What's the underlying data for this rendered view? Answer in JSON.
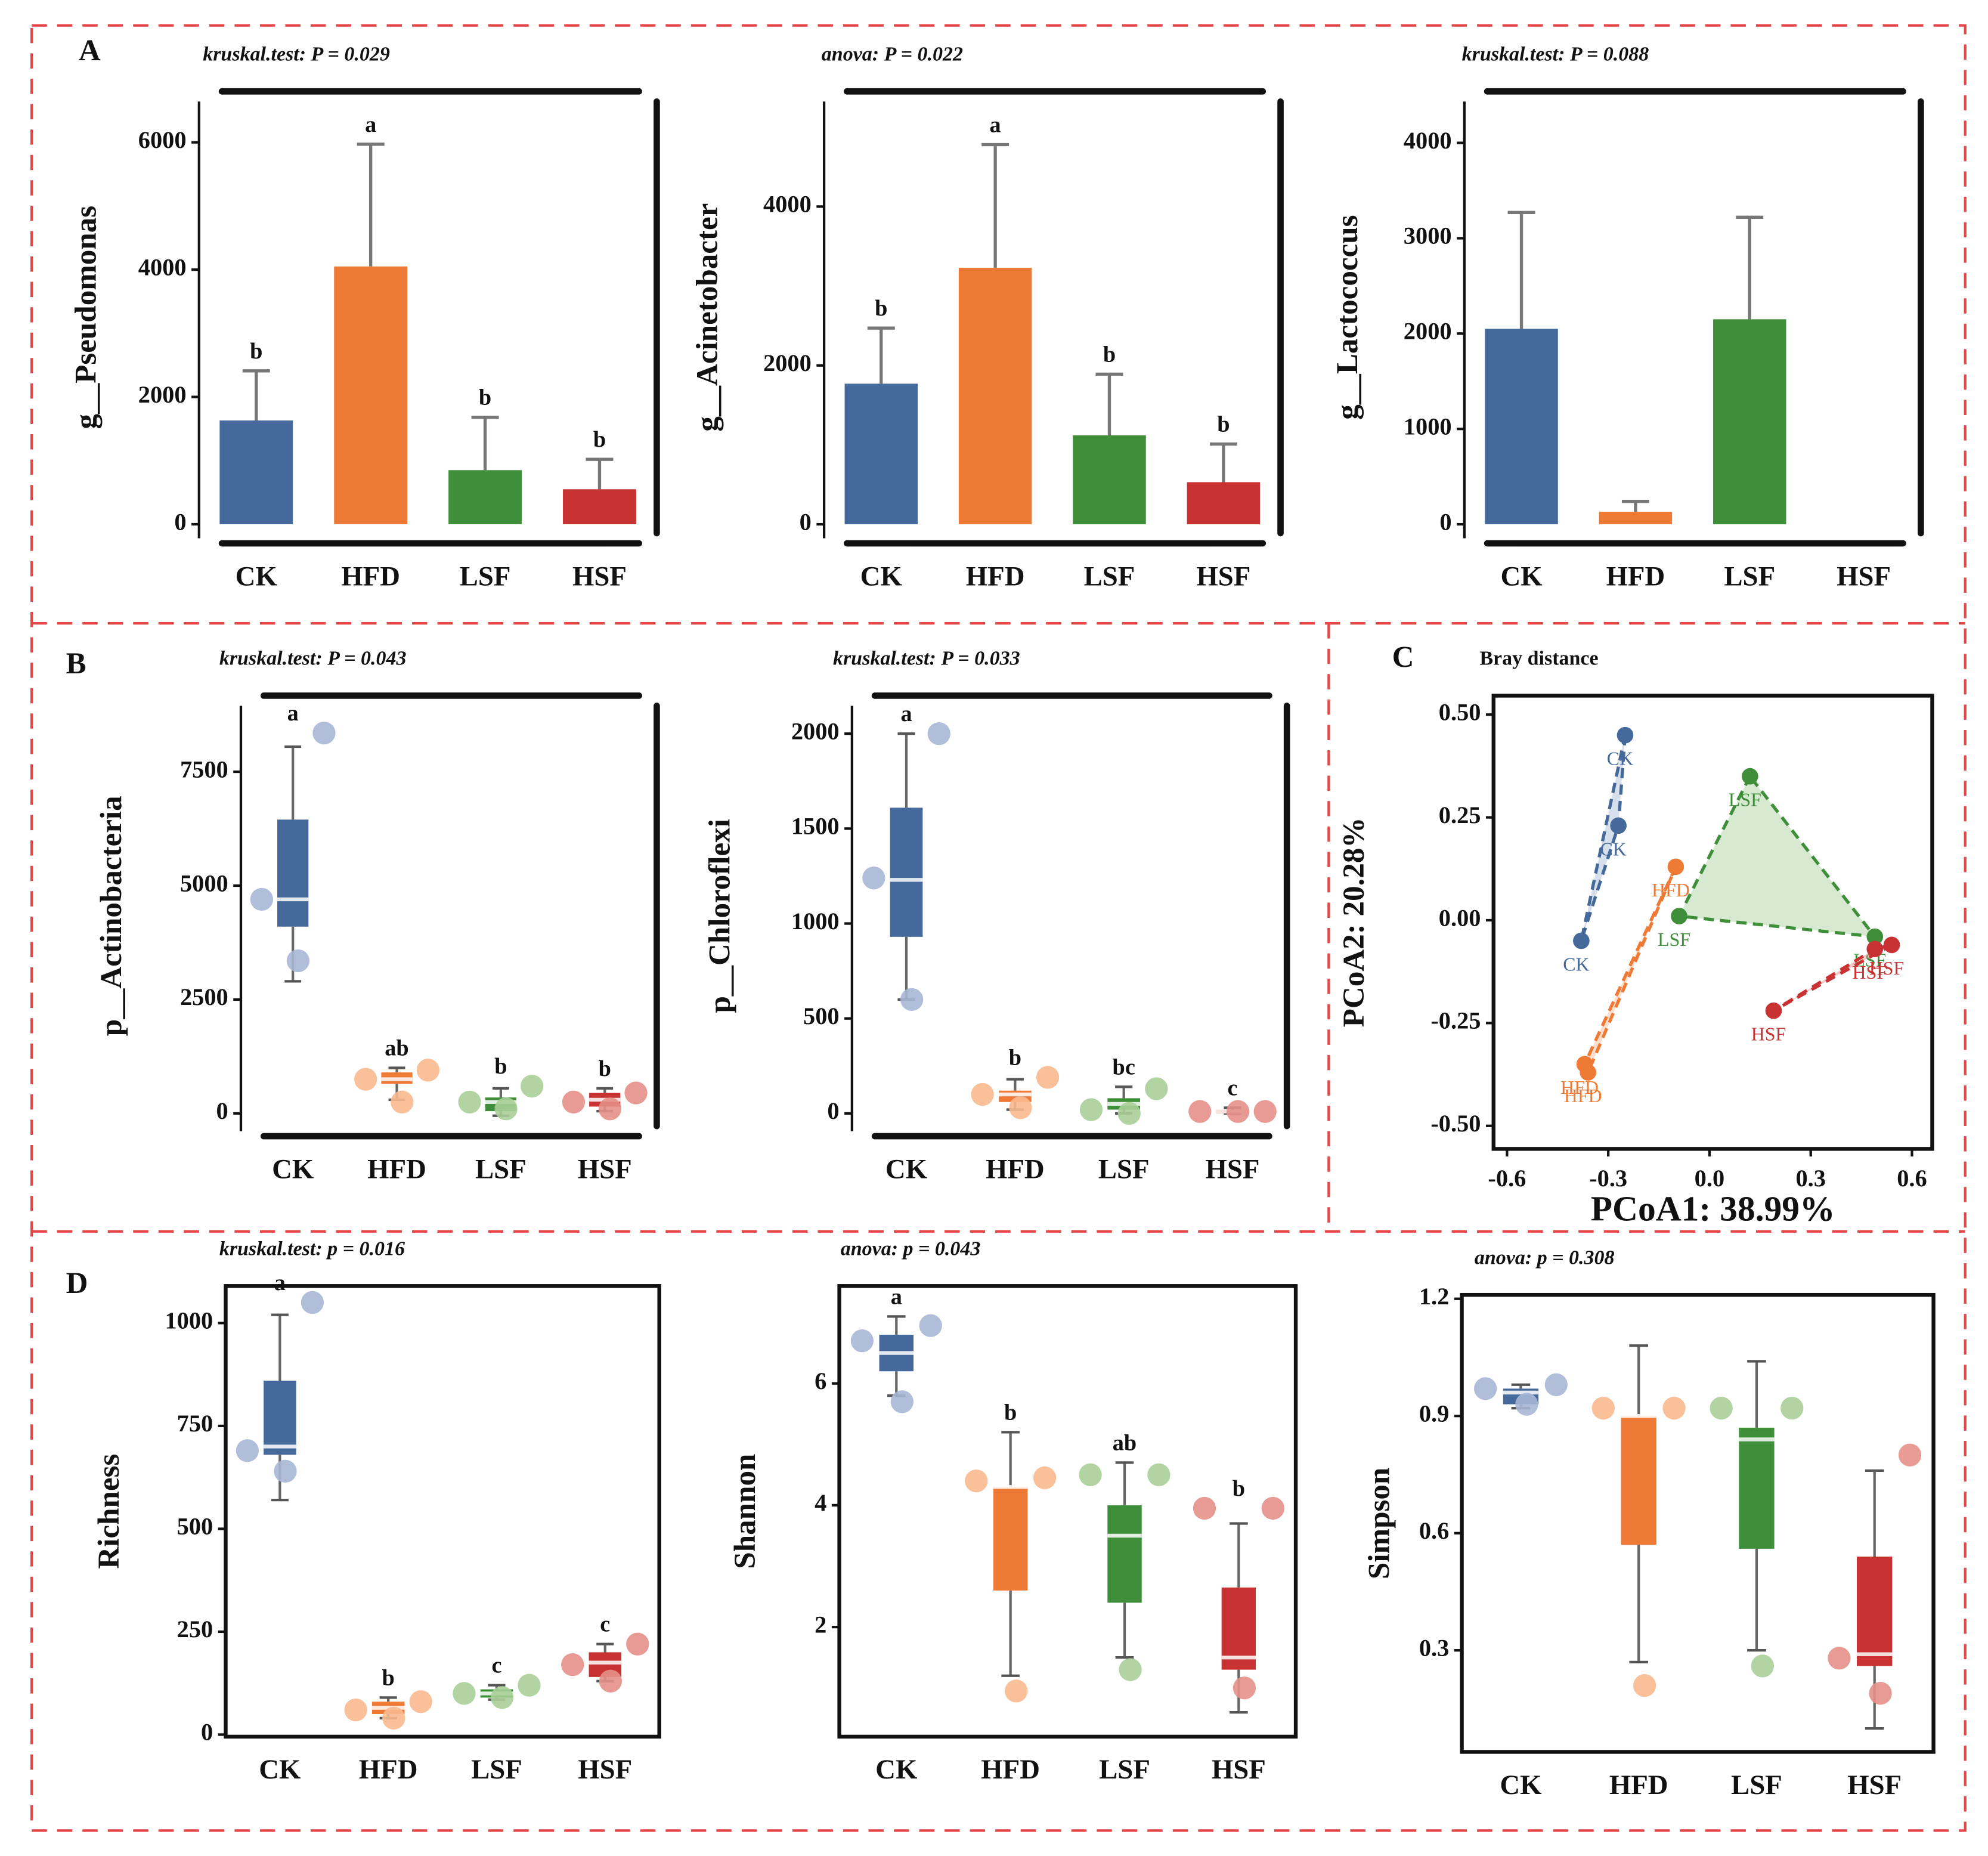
{
  "panel_labels": [
    "A",
    "B",
    "C",
    "D"
  ],
  "chart_data": [
    {
      "type": "bar",
      "title": "kruskal.test: P = 0.029",
      "ylabel": "g__Pseudomonas",
      "categories": [
        "CK",
        "HFD",
        "LSF",
        "HSF"
      ],
      "values": [
        1630,
        4050,
        850,
        550
      ],
      "errors": [
        780,
        1920,
        830,
        470
      ],
      "letters": [
        "b",
        "a",
        "b",
        "b"
      ],
      "colors": [
        "#44699a",
        "#ee7a35",
        "#3f8f3a",
        "#c93232"
      ],
      "ylim": [
        -300,
        6800
      ],
      "yticks": [
        0,
        2000,
        4000,
        6000
      ]
    },
    {
      "type": "bar",
      "title": "anova: P = 0.022",
      "ylabel": "g__Acinetobacter",
      "categories": [
        "CK",
        "HFD",
        "LSF",
        "HSF"
      ],
      "values": [
        1770,
        3230,
        1120,
        530
      ],
      "errors": [
        700,
        1550,
        770,
        480
      ],
      "letters": [
        "b",
        "a",
        "b",
        "b"
      ],
      "colors": [
        "#44699a",
        "#ee7a35",
        "#3f8f3a",
        "#c93232"
      ],
      "ylim": [
        -240,
        5450
      ],
      "yticks": [
        0,
        2000,
        4000
      ]
    },
    {
      "type": "bar",
      "title": "kruskal.test: P = 0.088",
      "ylabel": "g__Lactococcus",
      "categories": [
        "CK",
        "HFD",
        "LSF",
        "HSF"
      ],
      "values": [
        2050,
        130,
        2150,
        0
      ],
      "errors": [
        1220,
        110,
        1070,
        null
      ],
      "colors": [
        "#44699a",
        "#ee7a35",
        "#3f8f3a",
        "#c93232"
      ],
      "ylim": [
        -200,
        4540
      ],
      "yticks": [
        0,
        1000,
        2000,
        3000,
        4000
      ]
    },
    {
      "type": "box",
      "title": "kruskal.test: P = 0.043",
      "ylabel": "p__Actinobacteria",
      "categories": [
        "CK",
        "HFD",
        "LSF",
        "HSF"
      ],
      "boxes": [
        {
          "low": 2900,
          "q1": 4100,
          "median": 4700,
          "q3": 6450,
          "high": 8050,
          "points": [
            8350,
            4700,
            3350
          ]
        },
        {
          "low": 300,
          "q1": 650,
          "median": 750,
          "q3": 900,
          "high": 1000,
          "points": [
            950,
            750,
            250
          ]
        },
        {
          "low": -50,
          "q1": 50,
          "median": 250,
          "q3": 350,
          "high": 550,
          "points": [
            600,
            250,
            100
          ]
        },
        {
          "low": 50,
          "q1": 150,
          "median": 300,
          "q3": 450,
          "high": 550,
          "points": [
            450,
            250,
            100
          ]
        }
      ],
      "letters": [
        "a",
        "ab",
        "b",
        "b"
      ],
      "colors": [
        "#44699a",
        "#ee7a35",
        "#3f8f3a",
        "#c93232"
      ],
      "point_colors": [
        "#a7b7d6",
        "#f8b98f",
        "#a9cf98",
        "#e49088"
      ],
      "ylim": [
        -500,
        9170
      ],
      "yticks": [
        0,
        2500,
        5000,
        7500
      ]
    },
    {
      "type": "box",
      "title": "kruskal.test: P = 0.033",
      "ylabel": "p__Chloroflexi",
      "categories": [
        "CK",
        "HFD",
        "LSF",
        "HSF"
      ],
      "boxes": [
        {
          "low": 600,
          "q1": 930,
          "median": 1230,
          "q3": 1610,
          "high": 2000,
          "points": [
            2000,
            1240,
            600
          ]
        },
        {
          "low": 20,
          "q1": 60,
          "median": 100,
          "q3": 120,
          "high": 180,
          "points": [
            190,
            100,
            30
          ]
        },
        {
          "low": 0,
          "q1": 20,
          "median": 50,
          "q3": 80,
          "high": 140,
          "points": [
            130,
            20,
            0
          ]
        },
        {
          "low": 0,
          "q1": 0,
          "median": 10,
          "q3": 20,
          "high": 30,
          "points": [
            10,
            10,
            10
          ]
        }
      ],
      "letters": [
        "a",
        "b",
        "bc",
        "c"
      ],
      "colors": [
        "#44699a",
        "#ee7a35",
        "#3f8f3a",
        "#c93232"
      ],
      "point_colors": [
        "#a7b7d6",
        "#f8b98f",
        "#a9cf98",
        "#e49088"
      ],
      "ylim": [
        -120,
        2200
      ],
      "yticks": [
        0,
        500,
        1000,
        1500,
        2000
      ]
    },
    {
      "type": "scatter",
      "title": "Bray distance",
      "xlabel": "PCoA1: 38.99%",
      "ylabel": "PCoA2: 20.28%",
      "series": [
        {
          "name": "CK",
          "color": "#44699a",
          "fill": "#a7b7d6",
          "x": [
            -0.25,
            -0.27,
            -0.38
          ],
          "y": [
            0.45,
            0.23,
            -0.05
          ]
        },
        {
          "name": "HFD",
          "color": "#ee7a35",
          "fill": "#f8b98f",
          "x": [
            -0.1,
            -0.37,
            -0.36
          ],
          "y": [
            0.13,
            -0.35,
            -0.37
          ]
        },
        {
          "name": "LSF",
          "color": "#3f8f3a",
          "fill": "#a9cf98",
          "x": [
            0.12,
            -0.09,
            0.49
          ],
          "y": [
            0.35,
            0.01,
            -0.04
          ]
        },
        {
          "name": "HSF",
          "color": "#c93232",
          "fill": "#e49088",
          "x": [
            0.49,
            0.54,
            0.19
          ],
          "y": [
            -0.07,
            -0.06,
            -0.22
          ]
        }
      ],
      "xlim": [
        -0.64,
        0.66
      ],
      "xticks": [
        -0.6,
        -0.3,
        {
          "value": 0,
          "label": "0.0"
        },
        0.3,
        0.6
      ],
      "ylim": [
        -0.556,
        0.546
      ],
      "yticks": [
        {
          "value": 0.5,
          "label": "0.50"
        },
        0.25,
        {
          "value": 0,
          "label": "0.00"
        },
        -0.25,
        {
          "value": -0.5,
          "label": "-0.50"
        }
      ]
    },
    {
      "type": "box",
      "title": "kruskal.test: p = 0.016",
      "ylabel": "Richness",
      "categories": [
        "CK",
        "HFD",
        "LSF",
        "HSF"
      ],
      "boxes": [
        {
          "low": 570,
          "q1": 680,
          "median": 700,
          "q3": 860,
          "high": 1020,
          "points": [
            1050,
            690,
            640
          ]
        },
        {
          "low": 40,
          "q1": 50,
          "median": 65,
          "q3": 80,
          "high": 90,
          "points": [
            80,
            60,
            40
          ]
        },
        {
          "low": 85,
          "q1": 90,
          "median": 100,
          "q3": 110,
          "high": 120,
          "points": [
            120,
            100,
            90
          ]
        },
        {
          "low": 130,
          "q1": 140,
          "median": 175,
          "q3": 200,
          "high": 220,
          "points": [
            220,
            170,
            130
          ]
        }
      ],
      "letters": [
        "a",
        "b",
        "c",
        "c"
      ],
      "colors": [
        "#44699a",
        "#ee7a35",
        "#3f8f3a",
        "#c93232"
      ],
      "point_colors": [
        "#a7b7d6",
        "#f8b98f",
        "#a9cf98",
        "#e49088"
      ],
      "ylim": [
        -5,
        1090
      ],
      "yticks": [
        0,
        250,
        500,
        750,
        1000
      ]
    },
    {
      "type": "box",
      "title": "anova: p = 0.043",
      "ylabel": "Shannon",
      "categories": [
        "CK",
        "HFD",
        "LSF",
        "HSF"
      ],
      "boxes": [
        {
          "low": 5.8,
          "q1": 6.2,
          "median": 6.5,
          "q3": 6.8,
          "high": 7.1,
          "points": [
            6.95,
            6.7,
            5.7
          ]
        },
        {
          "low": 1.2,
          "q1": 2.6,
          "median": 4.3,
          "q3": 4.3,
          "high": 5.2,
          "points": [
            4.45,
            4.4,
            0.95
          ]
        },
        {
          "low": 1.5,
          "q1": 2.4,
          "median": 3.5,
          "q3": 4.0,
          "high": 4.7,
          "points": [
            4.5,
            4.5,
            1.3
          ]
        },
        {
          "low": 0.6,
          "q1": 1.3,
          "median": 1.5,
          "q3": 2.65,
          "high": 3.7,
          "points": [
            3.95,
            3.95,
            1.0
          ]
        }
      ],
      "letters": [
        "a",
        "b",
        "ab",
        "b"
      ],
      "colors": [
        "#44699a",
        "#ee7a35",
        "#3f8f3a",
        "#c93232"
      ],
      "point_colors": [
        "#a7b7d6",
        "#f8b98f",
        "#a9cf98",
        "#e49088"
      ],
      "ylim": [
        0.2,
        7.6
      ],
      "yticks": [
        2,
        4,
        6
      ]
    },
    {
      "type": "box",
      "title": "anova: p = 0.308",
      "ylabel": "Simpson",
      "categories": [
        "CK",
        "HFD",
        "LSF",
        "HSF"
      ],
      "boxes": [
        {
          "low": 0.92,
          "q1": 0.93,
          "median": 0.96,
          "q3": 0.97,
          "high": 0.98,
          "points": [
            0.98,
            0.97,
            0.93
          ]
        },
        {
          "low": 0.27,
          "q1": 0.57,
          "median": 0.9,
          "q3": 0.9,
          "high": 1.08,
          "points": [
            0.92,
            0.92,
            0.21
          ]
        },
        {
          "low": 0.3,
          "q1": 0.56,
          "median": 0.84,
          "q3": 0.87,
          "high": 1.04,
          "points": [
            0.92,
            0.92,
            0.26
          ]
        },
        {
          "low": 0.1,
          "q1": 0.26,
          "median": 0.29,
          "q3": 0.54,
          "high": 0.76,
          "points": [
            0.8,
            0.28,
            0.19
          ]
        }
      ],
      "colors": [
        "#44699a",
        "#ee7a35",
        "#3f8f3a",
        "#c93232"
      ],
      "point_colors": [
        "#a7b7d6",
        "#f8b98f",
        "#a9cf98",
        "#e49088"
      ],
      "ylim": [
        0.04,
        1.21
      ],
      "yticks": [
        0.3,
        0.6,
        0.9,
        1.2
      ]
    }
  ]
}
